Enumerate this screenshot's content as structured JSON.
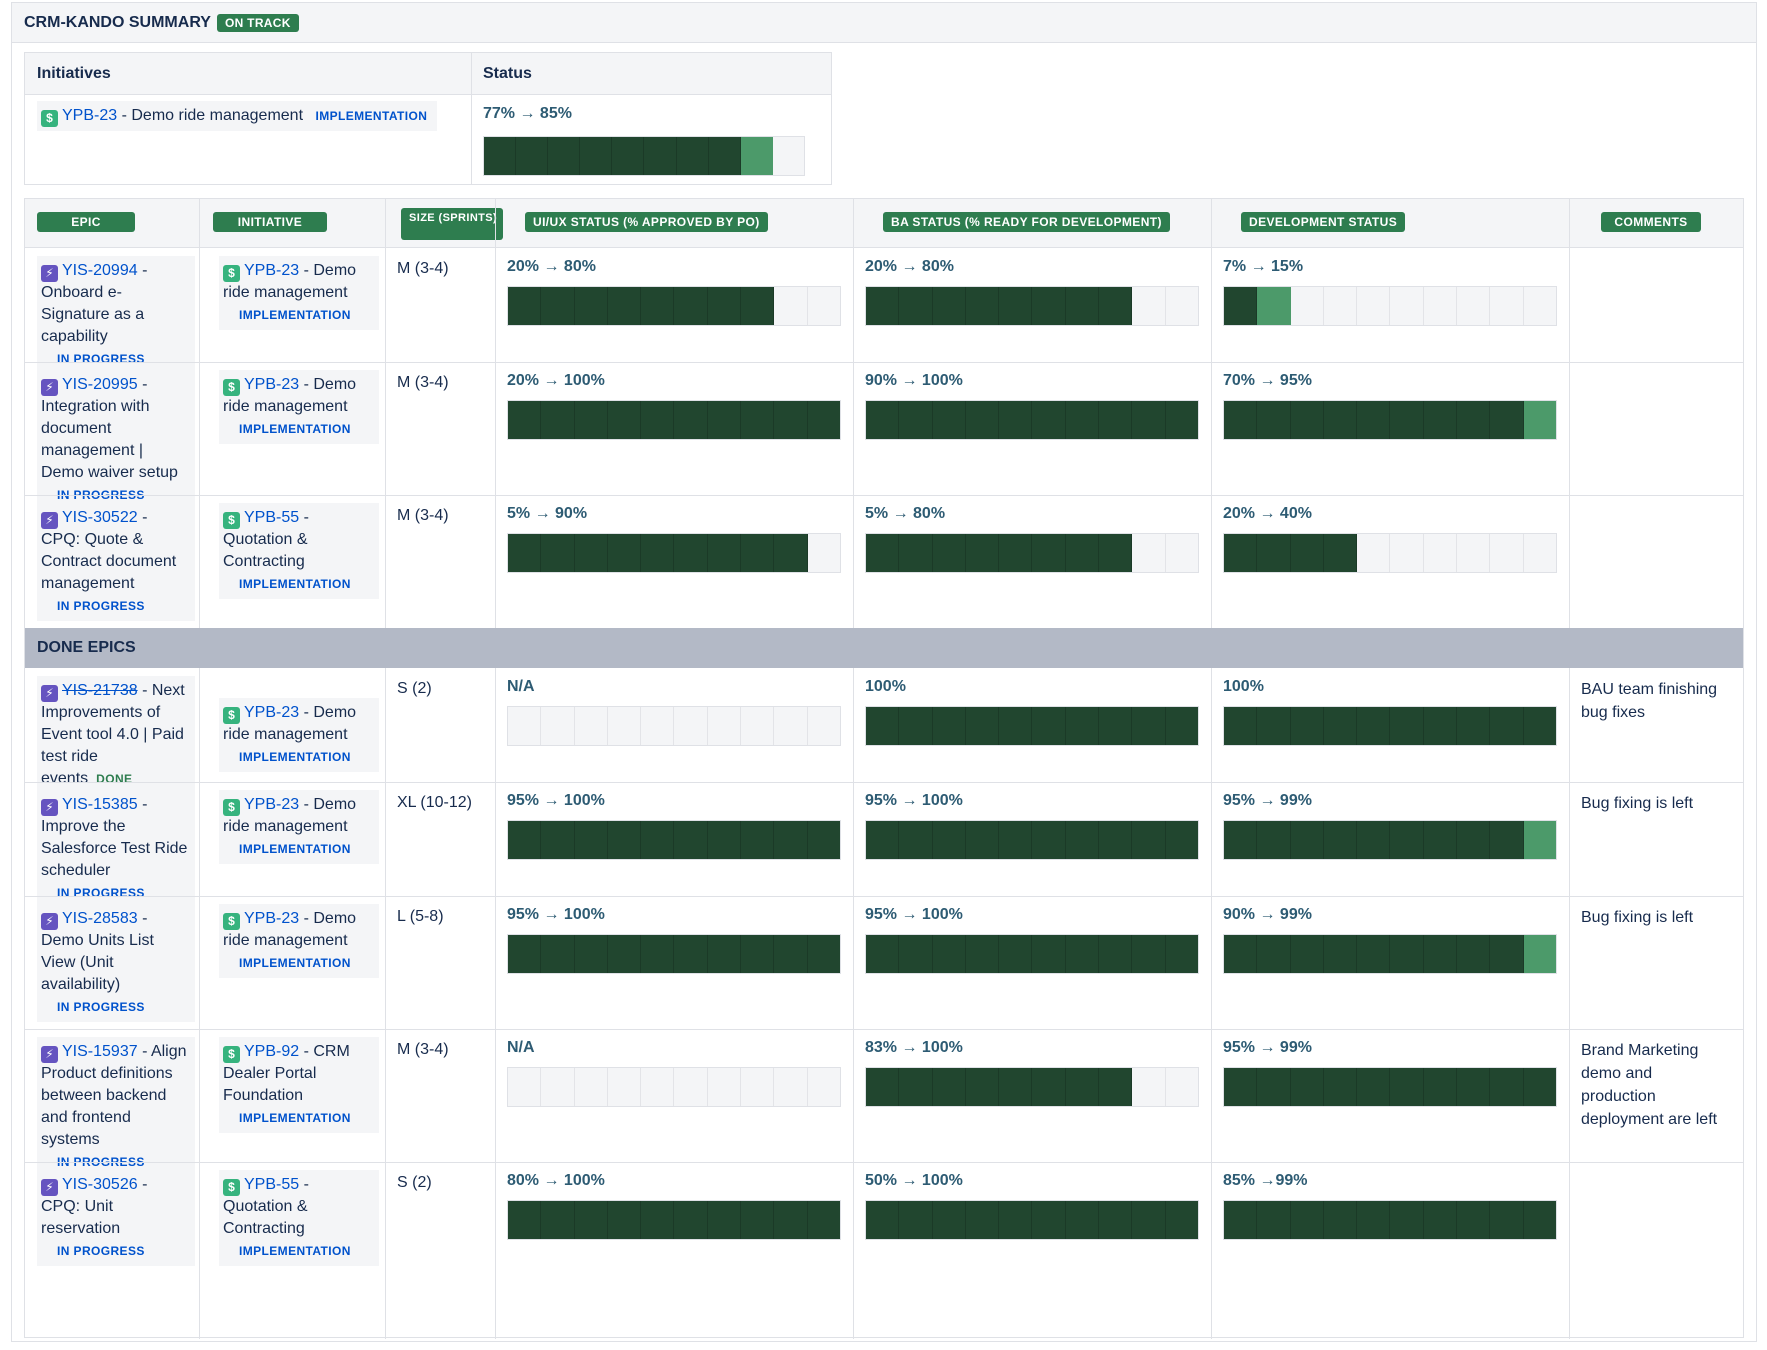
{
  "summary": {
    "title": "CRM-KANDO SUMMARY",
    "status": "ON TRACK"
  },
  "colors": {
    "bar_dark": "#21462f",
    "bar_light": "#4c9a6a",
    "header_pill": "#2e7d4f",
    "link": "#0052cc"
  },
  "initiatives_table": {
    "headers": {
      "initiatives": "Initiatives",
      "status": "Status"
    },
    "row": {
      "key": "YPB-23",
      "name": "- Demo ride management",
      "lozenge": "IMPLEMENTATION",
      "status_text": "77% → 85%",
      "progress_dark": 0.8,
      "progress_light": 0.1
    }
  },
  "main_table": {
    "headers": {
      "epic": "EPIC",
      "initiative": "INITIATIVE",
      "size": "SIZE (SPRINTS)",
      "uiux": "UI/UX STATUS (% APPROVED BY PO)",
      "ba": "BA STATUS (% READY FOR DEVELOPMENT)",
      "dev": "DEVELOPMENT STATUS",
      "comments": "COMMENTS"
    },
    "done_section_label": "DONE EPICS",
    "rows": [
      {
        "epic_key": "YIS-20994",
        "epic_name": "- Onboard e-Signature as a capability",
        "epic_status": "IN PROGRESS",
        "init_key": "YPB-23",
        "init_name": "- Demo ride management",
        "init_status": "IMPLEMENTATION",
        "size": "M (3-4)",
        "uiux_text": "20% → 80%",
        "ba_text": "20% → 80%",
        "dev_text": "7% → 15%",
        "comment": ""
      },
      {
        "epic_key": "YIS-20995",
        "epic_name": "- Integration with document management | Demo waiver setup",
        "epic_status": "IN PROGRESS",
        "init_key": "YPB-23",
        "init_name": "- Demo ride management",
        "init_status": "IMPLEMENTATION",
        "size": "M (3-4)",
        "uiux_text": "20% → 100%",
        "ba_text": "90% → 100%",
        "dev_text": "70% → 95%",
        "comment": ""
      },
      {
        "epic_key": "YIS-30522",
        "epic_name": "- CPQ: Quote & Contract document management",
        "epic_status": "IN PROGRESS",
        "init_key": "YPB-55",
        "init_name": "- Quotation & Contracting",
        "init_status": "IMPLEMENTATION",
        "size": "M (3-4)",
        "uiux_text": "5% → 90%",
        "ba_text": "5% → 80%",
        "dev_text": "20% → 40%",
        "comment": ""
      },
      {
        "epic_key": "YIS-21738",
        "epic_name": "- Next Improvements of Event tool 4.0 | Paid test ride events",
        "epic_status": "DONE",
        "init_key": "YPB-23",
        "init_name": "- Demo ride management",
        "init_status": "IMPLEMENTATION",
        "size": "S (2)",
        "uiux_text": "N/A",
        "ba_text": "100%",
        "dev_text": "100%",
        "comment": "BAU team finishing bug fixes"
      },
      {
        "epic_key": "YIS-15385",
        "epic_name": "- Improve the Salesforce Test Ride scheduler",
        "epic_status": "IN PROGRESS",
        "init_key": "YPB-23",
        "init_name": "- Demo ride management",
        "init_status": "IMPLEMENTATION",
        "size": "XL (10-12)",
        "uiux_text": "95% → 100%",
        "ba_text": "95% → 100%",
        "dev_text": "95% → 99%",
        "comment": "Bug fixing is left"
      },
      {
        "epic_key": "YIS-28583",
        "epic_name": "- Demo Units List View (Unit availability)",
        "epic_status": "IN PROGRESS",
        "init_key": "YPB-23",
        "init_name": "- Demo ride management",
        "init_status": "IMPLEMENTATION",
        "size": "L (5-8)",
        "uiux_text": "95% → 100%",
        "ba_text": "95% → 100%",
        "dev_text": "90% → 99%",
        "comment": "Bug fixing is left"
      },
      {
        "epic_key": "YIS-15937",
        "epic_name": "- Align Product definitions between backend and frontend systems",
        "epic_status": "IN PROGRESS",
        "init_key": "YPB-92",
        "init_name": "- CRM Dealer Portal Foundation",
        "init_status": "IMPLEMENTATION",
        "size": "M (3-4)",
        "uiux_text": "N/A",
        "ba_text": "83% → 100%",
        "dev_text": "95% → 99%",
        "comment": "Brand Marketing demo and production deployment are left"
      },
      {
        "epic_key": "YIS-30526",
        "epic_name": "- CPQ: Unit reservation",
        "epic_status": "IN PROGRESS",
        "init_key": "YPB-55",
        "init_name": "- Quotation & Contracting",
        "init_status": "IMPLEMENTATION",
        "size": "S (2)",
        "uiux_text": "80% → 100%",
        "ba_text": "50% → 100%",
        "dev_text": "85% →99%",
        "comment": ""
      }
    ],
    "bars": [
      {
        "uiux": [
          8,
          0
        ],
        "ba": [
          8,
          0
        ],
        "dev": [
          1,
          1
        ]
      },
      {
        "uiux": [
          10,
          0
        ],
        "ba": [
          10,
          0
        ],
        "dev": [
          9,
          1
        ]
      },
      {
        "uiux": [
          9,
          0
        ],
        "ba": [
          8,
          0
        ],
        "dev": [
          4,
          0
        ]
      },
      {
        "uiux": [
          0,
          0
        ],
        "ba": [
          10,
          0
        ],
        "dev": [
          10,
          0
        ]
      },
      {
        "uiux": [
          10,
          0
        ],
        "ba": [
          10,
          0
        ],
        "dev": [
          9,
          1
        ]
      },
      {
        "uiux": [
          10,
          0
        ],
        "ba": [
          10,
          0
        ],
        "dev": [
          9,
          1
        ]
      },
      {
        "uiux": [
          0,
          0
        ],
        "ba": [
          8,
          0
        ],
        "dev": [
          10,
          0
        ]
      },
      {
        "uiux": [
          10,
          0
        ],
        "ba": [
          10,
          0
        ],
        "dev": [
          10,
          0
        ]
      }
    ]
  }
}
